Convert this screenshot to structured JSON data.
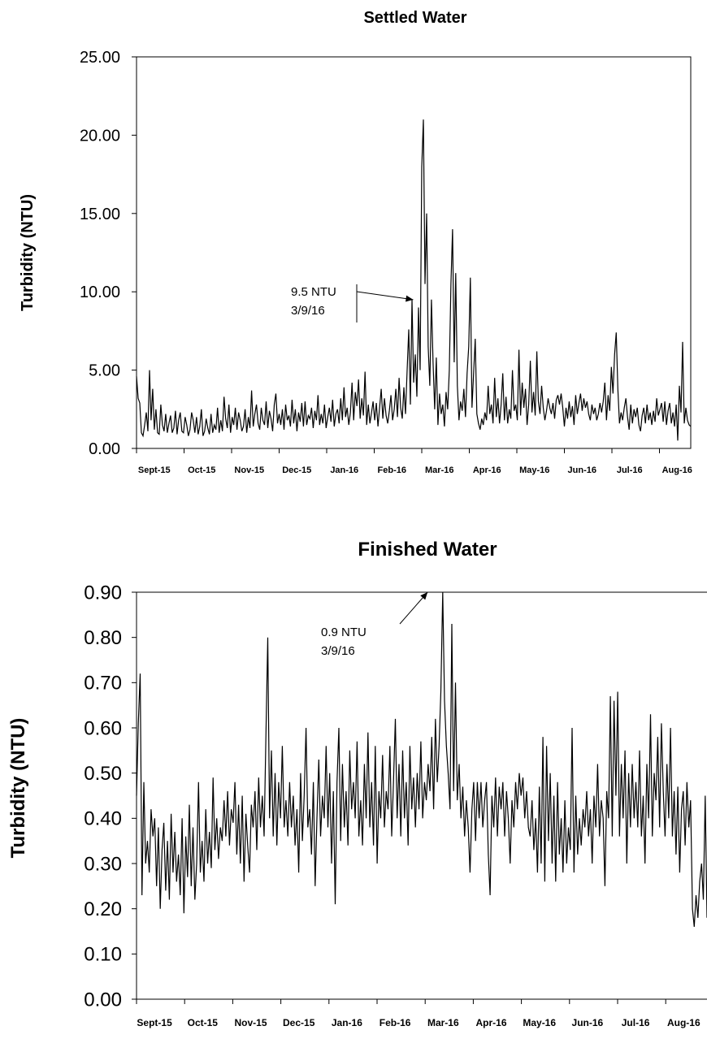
{
  "chart_data": [
    {
      "type": "line",
      "title": "Settled Water",
      "ylabel": "Turbidity (NTU)",
      "xlabel": "",
      "ylim": [
        0,
        25
      ],
      "yticks": [
        "0.00",
        "5.00",
        "10.00",
        "15.00",
        "20.00",
        "25.00"
      ],
      "x_ticks": [
        "Sept-15",
        "Oct-15",
        "Nov-15",
        "Dec-15",
        "Jan-16",
        "Feb-16",
        "Mar-16",
        "Apr-16",
        "May-16",
        "Jun-16",
        "Jul-16",
        "Aug-16"
      ],
      "grid": false,
      "annotation": {
        "text_line1": "9.5 NTU",
        "text_line2": "3/9/16",
        "target": {
          "month_index": 5.82,
          "value": 9.5
        }
      },
      "series": [
        {
          "values": [
            4.6,
            3.2,
            2.9,
            1.0,
            0.8,
            1.5,
            2.3,
            1.1,
            5.0,
            1.8,
            3.8,
            1.2,
            2.5,
            1.0,
            0.9,
            2.8,
            1.5,
            1.1,
            2.2,
            1.0,
            1.6,
            2.1,
            1.0,
            1.3,
            2.4,
            0.9,
            1.8,
            2.3,
            1.1,
            1.0,
            2.0,
            1.5,
            0.8,
            1.2,
            2.3,
            1.8,
            1.0,
            2.0,
            0.9,
            1.4,
            2.5,
            0.8,
            1.1,
            1.9,
            1.3,
            0.9,
            2.2,
            1.0,
            1.5,
            1.2,
            2.6,
            1.0,
            1.8,
            1.1,
            3.3,
            1.9,
            1.3,
            2.8,
            1.0,
            2.0,
            1.5,
            2.6,
            1.2,
            2.3,
            1.8,
            1.1,
            1.4,
            2.5,
            1.0,
            2.0,
            1.3,
            3.7,
            1.4,
            2.2,
            2.8,
            1.6,
            1.2,
            2.6,
            1.8,
            1.5,
            3.0,
            1.3,
            2.4,
            1.9,
            1.1,
            2.8,
            3.5,
            1.6,
            2.2,
            1.5,
            2.5,
            1.2,
            2.8,
            1.8,
            2.1,
            1.4,
            3.1,
            1.6,
            2.5,
            1.1,
            2.3,
            1.7,
            2.9,
            1.4,
            3.0,
            1.5,
            2.1,
            1.9,
            2.6,
            1.3,
            2.4,
            1.8,
            3.4,
            1.5,
            2.2,
            1.6,
            2.8,
            1.3,
            2.0,
            2.6,
            1.7,
            3.1,
            1.4,
            2.2,
            2.5,
            1.6,
            3.2,
            1.8,
            3.9,
            2.0,
            2.6,
            1.5,
            2.3,
            4.2,
            1.8,
            3.6,
            2.7,
            4.4,
            1.9,
            3.2,
            2.1,
            4.9,
            1.5,
            2.8,
            1.6,
            2.3,
            3.0,
            1.8,
            2.9,
            1.4,
            2.6,
            3.8,
            1.9,
            3.2,
            2.1,
            1.6,
            2.4,
            3.4,
            1.8,
            2.5,
            3.8,
            2.0,
            4.5,
            2.6,
            1.9,
            3.9,
            2.2,
            5.0,
            7.6,
            2.8,
            9.5,
            4.2,
            6.0,
            3.3,
            9.0,
            5.0,
            18.0,
            21.0,
            10.5,
            15.0,
            6.5,
            4.0,
            9.5,
            5.5,
            2.5,
            5.8,
            1.5,
            3.5,
            2.2,
            2.8,
            1.4,
            3.6,
            2.5,
            5.0,
            10.5,
            14.0,
            5.5,
            11.2,
            4.0,
            1.8,
            3.0,
            2.4,
            3.8,
            2.0,
            4.8,
            6.5,
            10.9,
            2.6,
            4.8,
            7.0,
            2.2,
            1.6,
            1.2,
            1.9,
            1.5,
            2.3,
            1.8,
            4.0,
            2.2,
            2.8,
            1.6,
            4.5,
            2.0,
            3.2,
            1.6,
            2.8,
            4.8,
            1.8,
            3.3,
            1.6,
            2.5,
            1.9,
            5.0,
            2.4,
            2.8,
            1.8,
            6.3,
            2.1,
            4.2,
            2.6,
            3.8,
            1.5,
            2.8,
            5.6,
            2.3,
            3.6,
            2.1,
            6.2,
            3.0,
            2.2,
            4.0,
            2.6,
            1.8,
            2.4,
            3.2,
            2.6,
            2.2,
            2.9,
            1.9,
            3.1,
            3.4,
            2.8,
            3.5,
            2.6,
            1.4,
            2.6,
            1.9,
            3.0,
            2.0,
            2.7,
            1.5,
            3.4,
            2.2,
            2.9,
            3.5,
            2.4,
            3.2,
            2.6,
            3.0,
            2.2,
            1.8,
            2.8,
            2.2,
            2.6,
            1.8,
            2.2,
            2.9,
            2.3,
            3.0,
            4.2,
            1.8,
            3.4,
            2.4,
            5.2,
            3.5,
            6.0,
            7.4,
            3.8,
            1.6,
            2.3,
            1.8,
            2.6,
            3.2,
            2.0,
            1.2,
            2.8,
            1.6,
            2.5,
            2.0,
            2.6,
            1.5,
            1.1,
            2.1,
            2.6,
            1.6,
            2.8,
            1.8,
            2.3,
            1.5,
            2.4,
            1.7,
            3.2,
            2.1,
            2.5,
            2.9,
            1.7,
            3.0,
            1.5,
            2.4,
            2.9,
            1.6,
            2.3,
            1.4,
            2.8,
            0.5,
            4.0,
            2.3,
            6.8,
            1.6,
            2.6,
            1.8,
            1.5,
            1.4
          ]
        }
      ]
    },
    {
      "type": "line",
      "title": "Finished Water",
      "ylabel": "Turbidity (NTU)",
      "xlabel": "",
      "ylim": [
        0,
        0.9
      ],
      "yticks": [
        "0.00",
        "0.10",
        "0.20",
        "0.30",
        "0.40",
        "0.50",
        "0.60",
        "0.70",
        "0.80",
        "0.90"
      ],
      "x_ticks": [
        "Sept-15",
        "Oct-15",
        "Nov-15",
        "Dec-15",
        "Jan-16",
        "Feb-16",
        "Mar-16",
        "Apr-16",
        "May-16",
        "Jun-16",
        "Jul-16",
        "Aug-16"
      ],
      "grid": false,
      "annotation": {
        "text_line1": "0.9 NTU",
        "text_line2": "3/9/16",
        "target": {
          "month_index": 6.05,
          "value": 0.9
        }
      },
      "series": [
        {
          "values": [
            0.45,
            0.61,
            0.72,
            0.23,
            0.48,
            0.3,
            0.35,
            0.28,
            0.42,
            0.36,
            0.4,
            0.25,
            0.38,
            0.2,
            0.33,
            0.39,
            0.24,
            0.35,
            0.22,
            0.41,
            0.28,
            0.37,
            0.26,
            0.32,
            0.23,
            0.4,
            0.19,
            0.36,
            0.27,
            0.43,
            0.25,
            0.38,
            0.22,
            0.3,
            0.48,
            0.28,
            0.35,
            0.26,
            0.42,
            0.3,
            0.37,
            0.29,
            0.49,
            0.33,
            0.4,
            0.31,
            0.38,
            0.35,
            0.44,
            0.36,
            0.46,
            0.34,
            0.42,
            0.39,
            0.48,
            0.32,
            0.43,
            0.3,
            0.45,
            0.26,
            0.41,
            0.34,
            0.28,
            0.43,
            0.38,
            0.46,
            0.33,
            0.49,
            0.38,
            0.45,
            0.36,
            0.58,
            0.8,
            0.4,
            0.55,
            0.36,
            0.5,
            0.34,
            0.48,
            0.4,
            0.56,
            0.38,
            0.44,
            0.36,
            0.48,
            0.38,
            0.45,
            0.34,
            0.42,
            0.28,
            0.5,
            0.35,
            0.45,
            0.6,
            0.38,
            0.42,
            0.32,
            0.48,
            0.25,
            0.4,
            0.53,
            0.36,
            0.45,
            0.4,
            0.56,
            0.38,
            0.5,
            0.3,
            0.46,
            0.21,
            0.48,
            0.6,
            0.35,
            0.52,
            0.38,
            0.46,
            0.34,
            0.55,
            0.42,
            0.48,
            0.4,
            0.57,
            0.36,
            0.44,
            0.34,
            0.52,
            0.4,
            0.59,
            0.38,
            0.48,
            0.34,
            0.56,
            0.3,
            0.46,
            0.4,
            0.54,
            0.38,
            0.46,
            0.42,
            0.56,
            0.36,
            0.48,
            0.62,
            0.4,
            0.52,
            0.36,
            0.55,
            0.4,
            0.48,
            0.34,
            0.56,
            0.42,
            0.49,
            0.38,
            0.5,
            0.42,
            0.57,
            0.4,
            0.48,
            0.44,
            0.52,
            0.46,
            0.58,
            0.42,
            0.62,
            0.48,
            0.56,
            0.68,
            0.9,
            0.66,
            0.56,
            0.5,
            0.42,
            0.83,
            0.46,
            0.7,
            0.44,
            0.52,
            0.4,
            0.47,
            0.36,
            0.44,
            0.38,
            0.28,
            0.42,
            0.48,
            0.35,
            0.48,
            0.4,
            0.48,
            0.38,
            0.44,
            0.48,
            0.32,
            0.23,
            0.45,
            0.38,
            0.49,
            0.36,
            0.47,
            0.42,
            0.48,
            0.36,
            0.46,
            0.4,
            0.3,
            0.44,
            0.38,
            0.48,
            0.42,
            0.5,
            0.45,
            0.49,
            0.4,
            0.46,
            0.38,
            0.36,
            0.44,
            0.33,
            0.4,
            0.28,
            0.47,
            0.3,
            0.58,
            0.26,
            0.56,
            0.35,
            0.5,
            0.3,
            0.45,
            0.26,
            0.48,
            0.32,
            0.4,
            0.28,
            0.44,
            0.3,
            0.38,
            0.33,
            0.6,
            0.28,
            0.45,
            0.32,
            0.4,
            0.34,
            0.42,
            0.38,
            0.46,
            0.36,
            0.42,
            0.3,
            0.45,
            0.38,
            0.52,
            0.36,
            0.44,
            0.4,
            0.25,
            0.46,
            0.4,
            0.67,
            0.36,
            0.66,
            0.45,
            0.68,
            0.36,
            0.52,
            0.4,
            0.55,
            0.3,
            0.5,
            0.38,
            0.52,
            0.4,
            0.48,
            0.38,
            0.55,
            0.36,
            0.45,
            0.3,
            0.52,
            0.4,
            0.63,
            0.36,
            0.5,
            0.44,
            0.58,
            0.38,
            0.61,
            0.46,
            0.36,
            0.52,
            0.4,
            0.6,
            0.36,
            0.46,
            0.32,
            0.47,
            0.28,
            0.42,
            0.46,
            0.34,
            0.48,
            0.38,
            0.44,
            0.2,
            0.16,
            0.23,
            0.18,
            0.26,
            0.3,
            0.22,
            0.45,
            0.18
          ]
        }
      ]
    }
  ]
}
